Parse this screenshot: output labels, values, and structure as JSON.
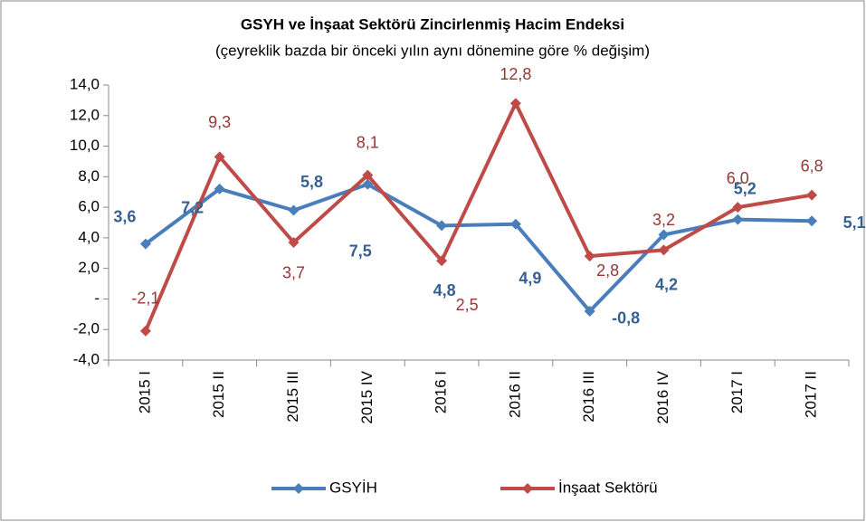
{
  "chart_data": {
    "type": "line",
    "title": "GSYH ve İnşaat Sektörü Zincirlenmiş Hacim Endeksi",
    "subtitle": "(çeyreklik bazda  bir  önceki yılın aynı dönemine göre % değişim)",
    "categories": [
      "2015 I",
      "2015 II",
      "2015 III",
      "2015 IV",
      "2016 I",
      "2016 II",
      "2016 III",
      "2016 IV",
      "2017 I",
      "2017 II"
    ],
    "series": [
      {
        "name": "GSYİH",
        "color": "#4a7ebb",
        "values": [
          3.6,
          7.2,
          5.8,
          7.5,
          4.8,
          4.9,
          -0.8,
          4.2,
          5.2,
          5.1
        ],
        "value_labels": [
          "3,6",
          "7,2",
          "5,8",
          "7,5",
          "4,8",
          "4,9",
          "-0,8",
          "4,2",
          "5,2",
          "5,1"
        ]
      },
      {
        "name": "İnşaat Sektörü",
        "color": "#be4b48",
        "values": [
          -2.1,
          9.3,
          3.7,
          8.1,
          2.5,
          12.8,
          2.8,
          3.2,
          6.0,
          6.8
        ],
        "value_labels": [
          "-2,1",
          "9,3",
          "3,7",
          "8,1",
          "2,5",
          "12,8",
          "2,8",
          "3,2",
          "6,0",
          "6,8"
        ]
      }
    ],
    "ylim": [
      -4,
      14
    ],
    "yticks": [
      {
        "value": -4,
        "label": "-4,0"
      },
      {
        "value": -2,
        "label": "-2,0"
      },
      {
        "value": 0,
        "label": "-"
      },
      {
        "value": 2,
        "label": "2,0"
      },
      {
        "value": 4,
        "label": "4,0"
      },
      {
        "value": 6,
        "label": "6,0"
      },
      {
        "value": 8,
        "label": "8,0"
      },
      {
        "value": 10,
        "label": "10,0"
      },
      {
        "value": 12,
        "label": "12,0"
      },
      {
        "value": 14,
        "label": "14,0"
      }
    ],
    "grid": false,
    "legend": "bottom"
  }
}
